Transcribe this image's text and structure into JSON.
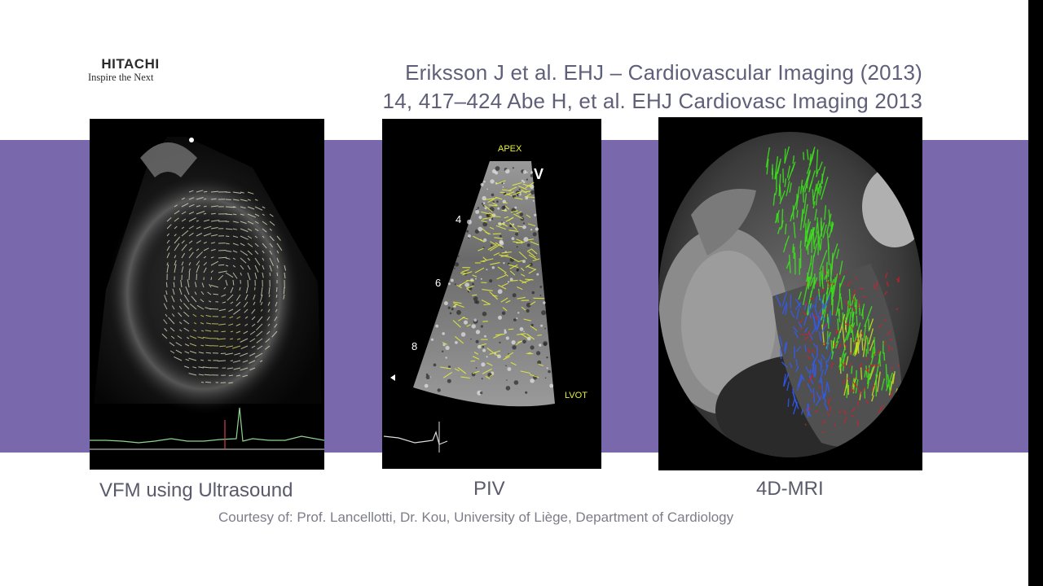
{
  "slide": {
    "logo": {
      "brand": "HITACHI",
      "tagline": "Inspire the Next"
    },
    "citation_lines": [
      "Eriksson J et al. EHJ – Cardiovascular Imaging (2013)",
      "14, 417–424 Abe H, et al. EHJ Cardiovasc Imaging 2013"
    ],
    "panels": [
      {
        "caption": "VFM using Ultrasound"
      },
      {
        "caption": "PIV",
        "image_labels": {
          "apex": "APEX",
          "view": "V",
          "depth_4": "4",
          "depth_6": "6",
          "depth_8": "8",
          "lvot": "LVOT"
        }
      },
      {
        "caption": "4D-MRI"
      }
    ],
    "courtesy": "Courtesy of: Prof. Lancellotti, Dr. Kou, University of Liège, Department of Cardiology"
  },
  "colors": {
    "band": "#7a68ad",
    "background": "#ffffff",
    "text": "#5a5a6a",
    "flow_green": "#39e619",
    "flow_blue": "#2f5bff",
    "flow_red": "#e01a28",
    "piv_yellow": "#e8ef3a"
  }
}
